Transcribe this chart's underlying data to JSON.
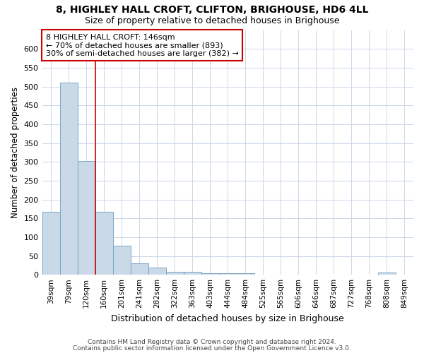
{
  "title": "8, HIGHLEY HALL CROFT, CLIFTON, BRIGHOUSE, HD6 4LL",
  "subtitle": "Size of property relative to detached houses in Brighouse",
  "xlabel": "Distribution of detached houses by size in Brighouse",
  "ylabel": "Number of detached properties",
  "categories": [
    "39sqm",
    "79sqm",
    "120sqm",
    "160sqm",
    "201sqm",
    "241sqm",
    "282sqm",
    "322sqm",
    "363sqm",
    "403sqm",
    "444sqm",
    "484sqm",
    "525sqm",
    "565sqm",
    "606sqm",
    "646sqm",
    "687sqm",
    "727sqm",
    "768sqm",
    "808sqm",
    "849sqm"
  ],
  "values": [
    168,
    510,
    302,
    168,
    78,
    31,
    19,
    7,
    8,
    5,
    5,
    5,
    0,
    0,
    0,
    0,
    0,
    0,
    0,
    6,
    0
  ],
  "bar_color": "#c9d9e8",
  "bar_edge_color": "#7aa5c8",
  "ylim": [
    0,
    650
  ],
  "ytick_max": 600,
  "ytick_step": 50,
  "vline_x": 2.5,
  "vline_color": "#cc0000",
  "annotation_text": "8 HIGHLEY HALL CROFT: 146sqm\n← 70% of detached houses are smaller (893)\n30% of semi-detached houses are larger (382) →",
  "annotation_box_color": "#ffffff",
  "annotation_box_edge": "#cc0000",
  "footer1": "Contains HM Land Registry data © Crown copyright and database right 2024.",
  "footer2": "Contains public sector information licensed under the Open Government Licence v3.0.",
  "bg_color": "#ffffff",
  "grid_color": "#ccd6e8"
}
